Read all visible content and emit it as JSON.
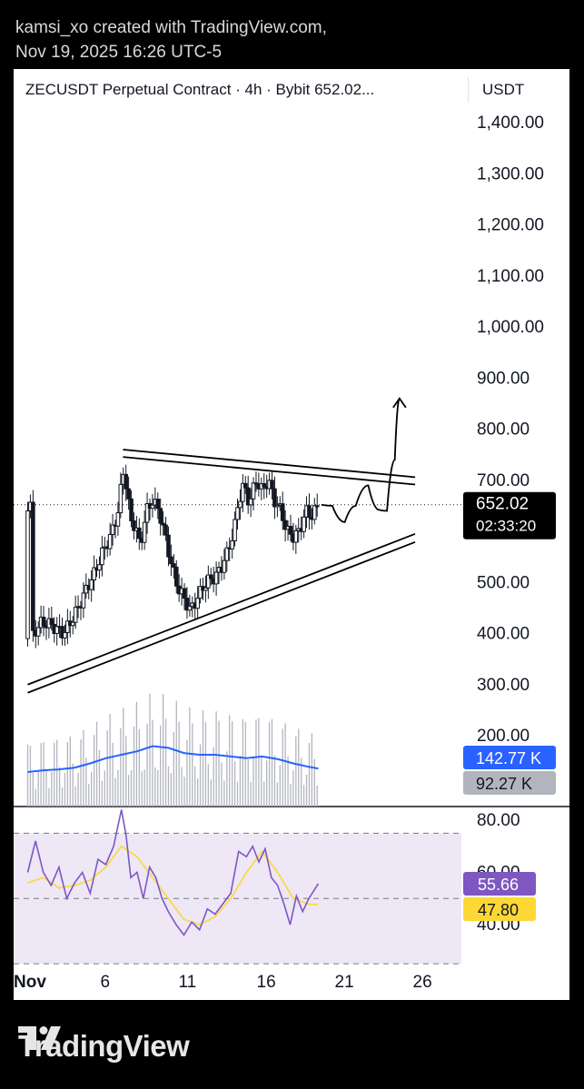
{
  "caption": {
    "line1": "kamsi_xo created with TradingView.com,",
    "line2": "Nov 19, 2025 16:26 UTC-5"
  },
  "header": {
    "title": "ZECUSDT Perpetual Contract · 4h · Bybit  652.02...",
    "currency": "USDT"
  },
  "brand": {
    "name": "TradingView",
    "logo_icon": "tradingview-logo-icon"
  },
  "colors": {
    "candle": "#131722",
    "volume": "#b2b5be",
    "volume_ma": "#2962ff",
    "rsi": "#7e57c2",
    "rsi_ma": "#fdd835",
    "rsi_band": "#ede7f6",
    "price_tag": "#000000",
    "vol_tag": "#2962ff",
    "vol_tag2": "#b2b5be"
  },
  "chart_data": {
    "type": "candlestick",
    "symbol": "ZECUSDT",
    "interval": "4h",
    "exchange": "Bybit",
    "x_ticks": [
      "Nov",
      "6",
      "11",
      "16",
      "21",
      "26"
    ],
    "y_ticks": [
      "1,400.00",
      "1,300.00",
      "1,200.00",
      "1,100.00",
      "1,000.00",
      "900.00",
      "800.00",
      "700.00",
      "500.00",
      "400.00",
      "300.00",
      "200.00"
    ],
    "ylim": [
      175,
      1450
    ],
    "x_range_days": [
      1,
      29
    ],
    "price_tag": {
      "value": "652.02",
      "countdown": "02:33:20"
    },
    "close_series": [
      [
        1.2,
        390
      ],
      [
        1.8,
        420
      ],
      [
        2.3,
        420
      ],
      [
        2.8,
        410
      ],
      [
        3.3,
        400
      ],
      [
        3.8,
        425
      ],
      [
        4.3,
        455
      ],
      [
        4.8,
        490
      ],
      [
        5.3,
        520
      ],
      [
        5.8,
        560
      ],
      [
        6.3,
        590
      ],
      [
        6.8,
        640
      ],
      [
        7.1,
        720
      ],
      [
        7.3,
        690
      ],
      [
        7.6,
        620
      ],
      [
        7.9,
        610
      ],
      [
        8.2,
        570
      ],
      [
        8.6,
        640
      ],
      [
        9.0,
        660
      ],
      [
        9.4,
        640
      ],
      [
        9.8,
        590
      ],
      [
        10.2,
        535
      ],
      [
        10.6,
        490
      ],
      [
        11.0,
        470
      ],
      [
        11.4,
        445
      ],
      [
        11.8,
        465
      ],
      [
        12.2,
        490
      ],
      [
        12.6,
        505
      ],
      [
        13.0,
        510
      ],
      [
        13.4,
        530
      ],
      [
        13.8,
        560
      ],
      [
        14.2,
        600
      ],
      [
        14.5,
        660
      ],
      [
        14.8,
        690
      ],
      [
        15.2,
        655
      ],
      [
        15.6,
        700
      ],
      [
        16.0,
        680
      ],
      [
        16.4,
        700
      ],
      [
        16.8,
        660
      ],
      [
        17.2,
        640
      ],
      [
        17.6,
        600
      ],
      [
        18.0,
        590
      ],
      [
        18.4,
        600
      ],
      [
        18.8,
        640
      ],
      [
        19.2,
        630
      ],
      [
        19.6,
        652
      ]
    ],
    "drawings": {
      "upper_trendline": {
        "from": [
          7.1,
          760
        ],
        "to": [
          25.8,
          706
        ]
      },
      "lower_trendline": {
        "from": [
          1.0,
          300
        ],
        "to": [
          25.8,
          595
        ]
      },
      "projection_path": [
        [
          19.8,
          652
        ],
        [
          20.5,
          650
        ],
        [
          21.3,
          618
        ],
        [
          22.0,
          650
        ],
        [
          22.8,
          690
        ],
        [
          23.5,
          642
        ],
        [
          24.0,
          640
        ],
        [
          24.5,
          740
        ],
        [
          24.8,
          860
        ]
      ]
    },
    "volume": {
      "ma_tag": "142.77 K",
      "last_tag": "92.27 K",
      "ma_series": [
        [
          1.0,
          40
        ],
        [
          2.0,
          42
        ],
        [
          3.0,
          43
        ],
        [
          4.0,
          45
        ],
        [
          5.0,
          50
        ],
        [
          6.0,
          56
        ],
        [
          7.0,
          60
        ],
        [
          8.0,
          64
        ],
        [
          9.0,
          70
        ],
        [
          10.0,
          68
        ],
        [
          11.0,
          62
        ],
        [
          12.0,
          60
        ],
        [
          13.0,
          60
        ],
        [
          14.0,
          58
        ],
        [
          15.0,
          56
        ],
        [
          16.0,
          58
        ],
        [
          17.0,
          55
        ],
        [
          18.0,
          50
        ],
        [
          19.0,
          46
        ],
        [
          19.6,
          44
        ]
      ]
    },
    "rsi": {
      "y_ticks": [
        "80.00",
        "60.00",
        "40.00"
      ],
      "upper_band": 70,
      "middle_band": 50,
      "lower_band": 30,
      "rsi_value": "55.66",
      "ma_value": "47.80",
      "rsi_series": [
        [
          1.0,
          60
        ],
        [
          1.5,
          72
        ],
        [
          2.0,
          60
        ],
        [
          2.5,
          55
        ],
        [
          3.0,
          62
        ],
        [
          3.5,
          50
        ],
        [
          4.0,
          56
        ],
        [
          4.5,
          60
        ],
        [
          5.0,
          52
        ],
        [
          5.5,
          65
        ],
        [
          6.0,
          63
        ],
        [
          6.5,
          70
        ],
        [
          7.0,
          84
        ],
        [
          7.3,
          74
        ],
        [
          7.6,
          58
        ],
        [
          8.0,
          60
        ],
        [
          8.4,
          50
        ],
        [
          8.8,
          62
        ],
        [
          9.2,
          58
        ],
        [
          9.6,
          50
        ],
        [
          10.0,
          45
        ],
        [
          10.5,
          40
        ],
        [
          11.0,
          36
        ],
        [
          11.5,
          41
        ],
        [
          12.0,
          38
        ],
        [
          12.5,
          46
        ],
        [
          13.0,
          44
        ],
        [
          13.5,
          48
        ],
        [
          14.0,
          52
        ],
        [
          14.5,
          68
        ],
        [
          15.0,
          66
        ],
        [
          15.4,
          70
        ],
        [
          15.8,
          64
        ],
        [
          16.2,
          69
        ],
        [
          16.6,
          58
        ],
        [
          17.0,
          55
        ],
        [
          17.4,
          48
        ],
        [
          17.8,
          40
        ],
        [
          18.2,
          51
        ],
        [
          18.6,
          45
        ],
        [
          19.0,
          50
        ],
        [
          19.6,
          55.66
        ]
      ],
      "ma_series": [
        [
          1.0,
          56
        ],
        [
          2.0,
          58
        ],
        [
          3.0,
          54
        ],
        [
          4.0,
          55
        ],
        [
          5.0,
          57
        ],
        [
          6.0,
          62
        ],
        [
          7.0,
          70
        ],
        [
          8.0,
          66
        ],
        [
          9.0,
          58
        ],
        [
          10.0,
          50
        ],
        [
          11.0,
          42
        ],
        [
          12.0,
          40
        ],
        [
          13.0,
          43
        ],
        [
          14.0,
          50
        ],
        [
          15.0,
          60
        ],
        [
          16.0,
          68
        ],
        [
          17.0,
          60
        ],
        [
          18.0,
          50
        ],
        [
          19.0,
          47.8
        ],
        [
          19.6,
          47.8
        ]
      ]
    }
  }
}
